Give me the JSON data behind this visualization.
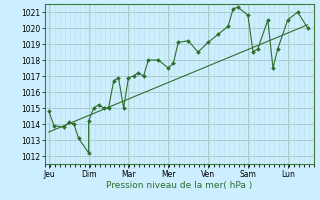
{
  "xlabel": "Pression niveau de la mer( hPa )",
  "bg_color": "#cceeff",
  "grid_major_color": "#aacccc",
  "grid_minor_color": "#bbdddd",
  "line_color": "#2d6e2d",
  "ylim": [
    1011.5,
    1021.5
  ],
  "xlim": [
    -0.1,
    6.6
  ],
  "day_labels": [
    "Jeu",
    "Dim",
    "Mar",
    "Mer",
    "Ven",
    "Sam",
    "Lun"
  ],
  "day_positions": [
    0,
    1,
    2,
    3,
    4,
    5,
    6
  ],
  "yticks": [
    1012,
    1013,
    1014,
    1015,
    1016,
    1017,
    1018,
    1019,
    1020,
    1021
  ],
  "series1_x": [
    0.0,
    0.13,
    0.38,
    0.5,
    0.63,
    0.75,
    1.0,
    1.0,
    1.13,
    1.25,
    1.38,
    1.5,
    1.63,
    1.75,
    1.88,
    2.0,
    2.13,
    2.25,
    2.38,
    2.5,
    2.75,
    3.0,
    3.13,
    3.25,
    3.5,
    3.75,
    4.0,
    4.25,
    4.5,
    4.63,
    4.75,
    5.0,
    5.13,
    5.25,
    5.5,
    5.63,
    5.75,
    6.0,
    6.25,
    6.5
  ],
  "series1_y": [
    1014.8,
    1013.9,
    1013.8,
    1014.1,
    1014.0,
    1013.1,
    1012.2,
    1014.2,
    1015.0,
    1015.2,
    1015.0,
    1015.0,
    1016.7,
    1016.9,
    1015.0,
    1016.9,
    1017.0,
    1017.2,
    1017.0,
    1018.0,
    1018.0,
    1017.5,
    1017.8,
    1019.1,
    1019.2,
    1018.5,
    1019.1,
    1019.6,
    1020.1,
    1021.2,
    1021.3,
    1020.8,
    1018.5,
    1018.7,
    1020.5,
    1017.5,
    1018.7,
    1020.5,
    1021.0,
    1020.0
  ],
  "trend_x": [
    0.0,
    6.5
  ],
  "trend_y": [
    1013.5,
    1020.2
  ]
}
